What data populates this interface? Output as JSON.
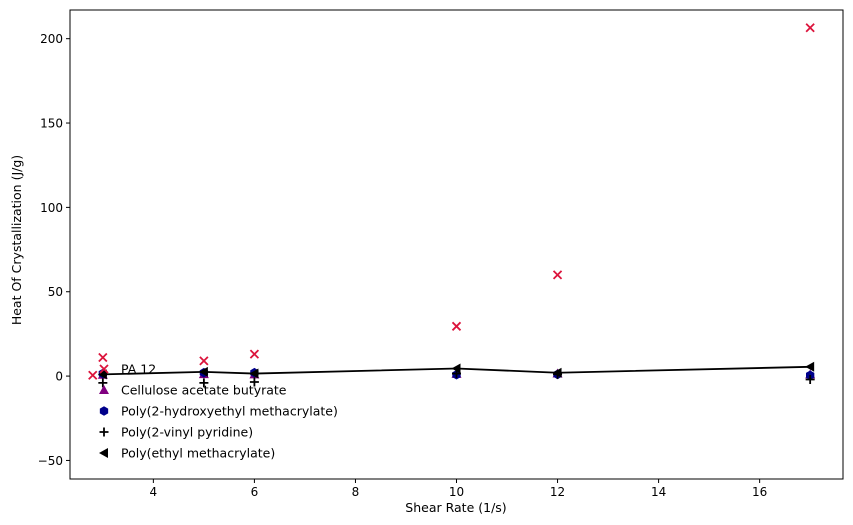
{
  "chart_data": {
    "type": "scatter",
    "title": "",
    "xlabel": "Shear Rate (1/s)",
    "ylabel": "Heat Of Crystallization (J/g)",
    "xlim": [
      2.35,
      17.65
    ],
    "ylim": [
      -61,
      217
    ],
    "xticks": [
      4,
      6,
      8,
      10,
      12,
      14,
      16
    ],
    "yticks": [
      -50,
      0,
      50,
      100,
      150,
      200
    ],
    "grid": false,
    "legend_position": "lower-left",
    "series": [
      {
        "name": "PA 12",
        "marker": "x",
        "color": "#dc143c",
        "points": [
          [
            2.8,
            0.5
          ],
          [
            3,
            11
          ],
          [
            5,
            9
          ],
          [
            6,
            13
          ],
          [
            10,
            29.5
          ],
          [
            12,
            60
          ],
          [
            17,
            206.5
          ]
        ]
      },
      {
        "name": "Cellulose acetate butyrate",
        "marker": "triangle-up",
        "color": "#800080",
        "points": [
          [
            3,
            0.8
          ],
          [
            5,
            1.2
          ],
          [
            6,
            1.0
          ],
          [
            10,
            1.3
          ],
          [
            12,
            1.5
          ],
          [
            17,
            1.0
          ]
        ]
      },
      {
        "name": "Poly(2-hydroxyethyl methacrylate)",
        "marker": "hexagon",
        "color": "#00008b",
        "points": [
          [
            3,
            1.5
          ],
          [
            5,
            2.0
          ],
          [
            6,
            2.0
          ],
          [
            10,
            0.8
          ],
          [
            12,
            1.0
          ],
          [
            17,
            0.5
          ]
        ]
      },
      {
        "name": "Poly(2-vinyl pyridine)",
        "marker": "plus",
        "color": "#000000",
        "points": [
          [
            3,
            -4
          ],
          [
            5,
            -4
          ],
          [
            6,
            -3.5
          ],
          [
            10,
            1.5
          ],
          [
            12,
            1.0
          ],
          [
            17,
            -2
          ]
        ]
      },
      {
        "name": "Poly(ethyl methacrylate)",
        "marker": "triangle-left",
        "color": "#000000",
        "line": true,
        "points": [
          [
            3,
            1.0
          ],
          [
            5,
            2.5
          ],
          [
            6,
            1.5
          ],
          [
            10,
            4.5
          ],
          [
            12,
            2.0
          ],
          [
            17,
            5.5
          ]
        ]
      }
    ]
  }
}
